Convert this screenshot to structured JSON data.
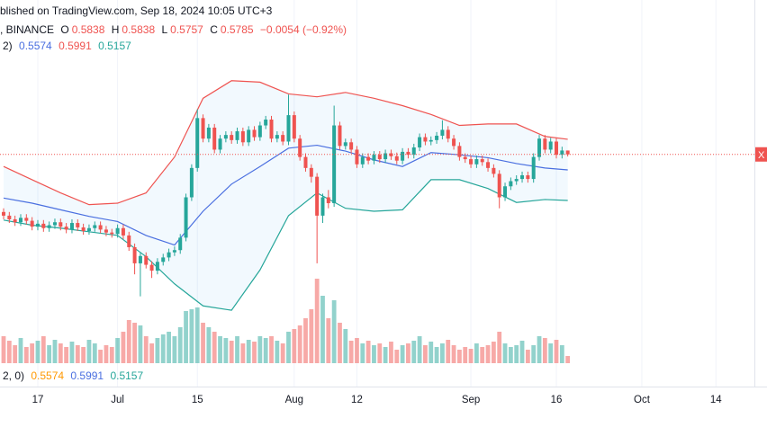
{
  "header": {
    "published": "blished on TradingView.com, Sep 18, 2024 10:05 UTC+3",
    "symbol": ", BINANCE",
    "labels": [
      "O",
      "H",
      "L",
      "C"
    ],
    "change": "−0.0054 (−0.92%)",
    "bb_prefix": "2)",
    "vol_prefix": "2, 0)",
    "price_tag": "X"
  },
  "chart_data": {
    "type": "candlestick",
    "x": [
      "Jun 11",
      "Jun 12",
      "Jun 13",
      "Jun 14",
      "Jun 15",
      "Jun 16",
      "Jun 17",
      "Jun 18",
      "Jun 19",
      "Jun 20",
      "Jun 21",
      "Jun 22",
      "Jun 23",
      "Jun 24",
      "Jun 25",
      "Jun 26",
      "Jun 27",
      "Jun 28",
      "Jun 29",
      "Jun 30",
      "Jul 1",
      "Jul 2",
      "Jul 3",
      "Jul 4",
      "Jul 5",
      "Jul 6",
      "Jul 7",
      "Jul 8",
      "Jul 9",
      "Jul 10",
      "Jul 11",
      "Jul 12",
      "Jul 13",
      "Jul 14",
      "Jul 15",
      "Jul 16",
      "Jul 17",
      "Jul 18",
      "Jul 19",
      "Jul 20",
      "Jul 21",
      "Jul 22",
      "Jul 23",
      "Jul 24",
      "Jul 25",
      "Jul 26",
      "Jul 27",
      "Jul 28",
      "Jul 29",
      "Jul 30",
      "Jul 31",
      "Aug 1",
      "Aug 2",
      "Aug 3",
      "Aug 4",
      "Aug 5",
      "Aug 6",
      "Aug 7",
      "Aug 8",
      "Aug 9",
      "Aug 10",
      "Aug 11",
      "Aug 12",
      "Aug 13",
      "Aug 14",
      "Aug 15",
      "Aug 16",
      "Aug 17",
      "Aug 18",
      "Aug 19",
      "Aug 20",
      "Aug 21",
      "Aug 22",
      "Aug 23",
      "Aug 24",
      "Aug 25",
      "Aug 26",
      "Aug 27",
      "Aug 28",
      "Aug 29",
      "Aug 30",
      "Aug 31",
      "Sep 1",
      "Sep 2",
      "Sep 3",
      "Sep 4",
      "Sep 5",
      "Sep 6",
      "Sep 7",
      "Sep 8",
      "Sep 9",
      "Sep 10",
      "Sep 11",
      "Sep 12",
      "Sep 13",
      "Sep 14",
      "Sep 15",
      "Sep 16",
      "Sep 17",
      "Sep 18"
    ],
    "open": [
      0.5,
      0.495,
      0.49,
      0.486,
      0.492,
      0.488,
      0.48,
      0.484,
      0.478,
      0.482,
      0.486,
      0.48,
      0.476,
      0.485,
      0.479,
      0.474,
      0.478,
      0.482,
      0.476,
      0.472,
      0.47,
      0.478,
      0.468,
      0.452,
      0.43,
      0.44,
      0.428,
      0.42,
      0.432,
      0.438,
      0.445,
      0.448,
      0.465,
      0.52,
      0.56,
      0.628,
      0.6,
      0.615,
      0.585,
      0.6,
      0.605,
      0.598,
      0.61,
      0.595,
      0.612,
      0.602,
      0.618,
      0.626,
      0.6,
      0.605,
      0.596,
      0.632,
      0.6,
      0.575,
      0.56,
      0.548,
      0.495,
      0.52,
      0.512,
      0.618,
      0.59,
      0.595,
      0.585,
      0.565,
      0.575,
      0.57,
      0.578,
      0.572,
      0.58,
      0.576,
      0.57,
      0.582,
      0.578,
      0.588,
      0.602,
      0.596,
      0.598,
      0.604,
      0.612,
      0.6,
      0.59,
      0.575,
      0.572,
      0.565,
      0.572,
      0.568,
      0.56,
      0.552,
      0.52,
      0.535,
      0.542,
      0.545,
      0.55,
      0.545,
      0.575,
      0.6,
      0.585,
      0.596,
      0.578,
      0.5838
    ],
    "high": [
      0.505,
      0.5,
      0.495,
      0.497,
      0.497,
      0.493,
      0.489,
      0.489,
      0.487,
      0.491,
      0.491,
      0.485,
      0.49,
      0.49,
      0.484,
      0.483,
      0.487,
      0.487,
      0.481,
      0.477,
      0.483,
      0.483,
      0.473,
      0.457,
      0.445,
      0.445,
      0.433,
      0.437,
      0.443,
      0.45,
      0.453,
      0.47,
      0.525,
      0.565,
      0.64,
      0.633,
      0.62,
      0.62,
      0.605,
      0.61,
      0.61,
      0.615,
      0.615,
      0.617,
      0.617,
      0.623,
      0.631,
      0.631,
      0.61,
      0.61,
      0.66,
      0.637,
      0.605,
      0.58,
      0.565,
      0.553,
      0.525,
      0.53,
      0.645,
      0.623,
      0.6,
      0.6,
      0.59,
      0.58,
      0.58,
      0.583,
      0.583,
      0.585,
      0.585,
      0.581,
      0.587,
      0.587,
      0.593,
      0.607,
      0.607,
      0.603,
      0.609,
      0.625,
      0.617,
      0.605,
      0.595,
      0.58,
      0.577,
      0.577,
      0.577,
      0.573,
      0.565,
      0.557,
      0.54,
      0.547,
      0.55,
      0.555,
      0.555,
      0.58,
      0.605,
      0.605,
      0.601,
      0.601,
      0.589,
      0.5838
    ],
    "low": [
      0.49,
      0.485,
      0.481,
      0.481,
      0.483,
      0.475,
      0.475,
      0.473,
      0.473,
      0.477,
      0.475,
      0.471,
      0.471,
      0.474,
      0.469,
      0.469,
      0.473,
      0.471,
      0.467,
      0.465,
      0.465,
      0.463,
      0.447,
      0.415,
      0.385,
      0.423,
      0.41,
      0.415,
      0.427,
      0.433,
      0.44,
      0.443,
      0.46,
      0.515,
      0.555,
      0.595,
      0.595,
      0.58,
      0.58,
      0.595,
      0.593,
      0.593,
      0.59,
      0.59,
      0.597,
      0.597,
      0.613,
      0.595,
      0.595,
      0.591,
      0.591,
      0.595,
      0.57,
      0.555,
      0.54,
      0.43,
      0.485,
      0.505,
      0.507,
      0.585,
      0.585,
      0.58,
      0.56,
      0.56,
      0.565,
      0.565,
      0.567,
      0.567,
      0.571,
      0.565,
      0.565,
      0.573,
      0.573,
      0.583,
      0.591,
      0.591,
      0.593,
      0.599,
      0.595,
      0.585,
      0.57,
      0.567,
      0.56,
      0.56,
      0.563,
      0.555,
      0.547,
      0.505,
      0.515,
      0.53,
      0.537,
      0.54,
      0.54,
      0.54,
      0.57,
      0.58,
      0.58,
      0.573,
      0.573,
      0.5757
    ],
    "close": [
      0.495,
      0.49,
      0.486,
      0.492,
      0.488,
      0.48,
      0.484,
      0.478,
      0.482,
      0.486,
      0.48,
      0.476,
      0.485,
      0.479,
      0.474,
      0.478,
      0.482,
      0.476,
      0.472,
      0.47,
      0.478,
      0.468,
      0.452,
      0.43,
      0.44,
      0.428,
      0.42,
      0.432,
      0.438,
      0.445,
      0.448,
      0.465,
      0.52,
      0.56,
      0.628,
      0.6,
      0.615,
      0.585,
      0.6,
      0.605,
      0.598,
      0.61,
      0.595,
      0.612,
      0.602,
      0.618,
      0.626,
      0.6,
      0.605,
      0.596,
      0.632,
      0.6,
      0.575,
      0.56,
      0.548,
      0.495,
      0.52,
      0.512,
      0.618,
      0.59,
      0.595,
      0.585,
      0.565,
      0.575,
      0.57,
      0.578,
      0.572,
      0.58,
      0.576,
      0.57,
      0.582,
      0.578,
      0.588,
      0.602,
      0.596,
      0.598,
      0.604,
      0.612,
      0.6,
      0.59,
      0.575,
      0.572,
      0.565,
      0.572,
      0.568,
      0.56,
      0.552,
      0.52,
      0.535,
      0.542,
      0.545,
      0.55,
      0.545,
      0.575,
      0.6,
      0.585,
      0.596,
      0.578,
      0.5838,
      0.5785
    ],
    "volume": [
      30,
      25,
      20,
      28,
      18,
      22,
      25,
      30,
      20,
      26,
      22,
      18,
      24,
      20,
      18,
      26,
      22,
      15,
      20,
      18,
      28,
      35,
      48,
      45,
      42,
      30,
      22,
      28,
      32,
      35,
      30,
      40,
      58,
      60,
      62,
      45,
      40,
      35,
      30,
      28,
      25,
      30,
      22,
      26,
      24,
      30,
      28,
      30,
      25,
      22,
      35,
      38,
      42,
      50,
      60,
      94,
      75,
      50,
      70,
      45,
      38,
      25,
      28,
      22,
      25,
      20,
      22,
      18,
      24,
      15,
      20,
      22,
      25,
      30,
      20,
      24,
      18,
      22,
      26,
      20,
      15,
      18,
      16,
      22,
      18,
      20,
      24,
      35,
      22,
      18,
      20,
      25,
      15,
      20,
      30,
      28,
      22,
      26,
      20,
      8
    ],
    "ylim": [
      0.262,
      0.789
    ],
    "volume_lim": [
      0,
      100
    ],
    "xticks": [
      {
        "value": "Jun 17",
        "label": "17"
      },
      {
        "value": "Jul 1",
        "label": "Jul"
      },
      {
        "value": "Jul 15",
        "label": "15"
      },
      {
        "value": "Aug 1",
        "label": "Aug"
      },
      {
        "value": "Aug 12",
        "label": "12"
      },
      {
        "value": "Sep 1",
        "label": "Sep"
      },
      {
        "value": "Sep 16",
        "label": "16"
      },
      {
        "value": "Oct 1",
        "label": "Oct"
      },
      {
        "value": "Oct 14",
        "label": "14"
      }
    ],
    "grid": true,
    "colors": {
      "up": "#26a69a",
      "down": "#ef5350"
    },
    "bands": {
      "x": [
        "Jun 11",
        "Jun 16",
        "Jun 21",
        "Jun 26",
        "Jul 1",
        "Jul 6",
        "Jul 11",
        "Jul 16",
        "Jul 21",
        "Jul 26",
        "Jul 31",
        "Aug 5",
        "Aug 10",
        "Aug 15",
        "Aug 20",
        "Aug 25",
        "Aug 30",
        "Sep 4",
        "Sep 9",
        "Sep 14",
        "Sep 18"
      ],
      "upper": [
        0.562,
        0.544,
        0.526,
        0.51,
        0.512,
        0.526,
        0.575,
        0.655,
        0.679,
        0.677,
        0.661,
        0.657,
        0.663,
        0.655,
        0.645,
        0.633,
        0.618,
        0.62,
        0.62,
        0.603,
        0.5991
      ],
      "middle": [
        0.519,
        0.512,
        0.503,
        0.494,
        0.487,
        0.468,
        0.455,
        0.501,
        0.538,
        0.562,
        0.587,
        0.591,
        0.583,
        0.571,
        0.562,
        0.581,
        0.578,
        0.574,
        0.566,
        0.56,
        0.5574
      ],
      "lower": [
        0.489,
        0.482,
        0.478,
        0.473,
        0.468,
        0.439,
        0.402,
        0.372,
        0.366,
        0.421,
        0.495,
        0.526,
        0.505,
        0.501,
        0.503,
        0.544,
        0.544,
        0.532,
        0.513,
        0.517,
        0.5157
      ],
      "colors": {
        "upper": "#ef5350",
        "middle": "#4a6fe0",
        "lower": "#26a69a",
        "fill": "#2196f3",
        "volume_legend": "#ff9800"
      }
    }
  }
}
